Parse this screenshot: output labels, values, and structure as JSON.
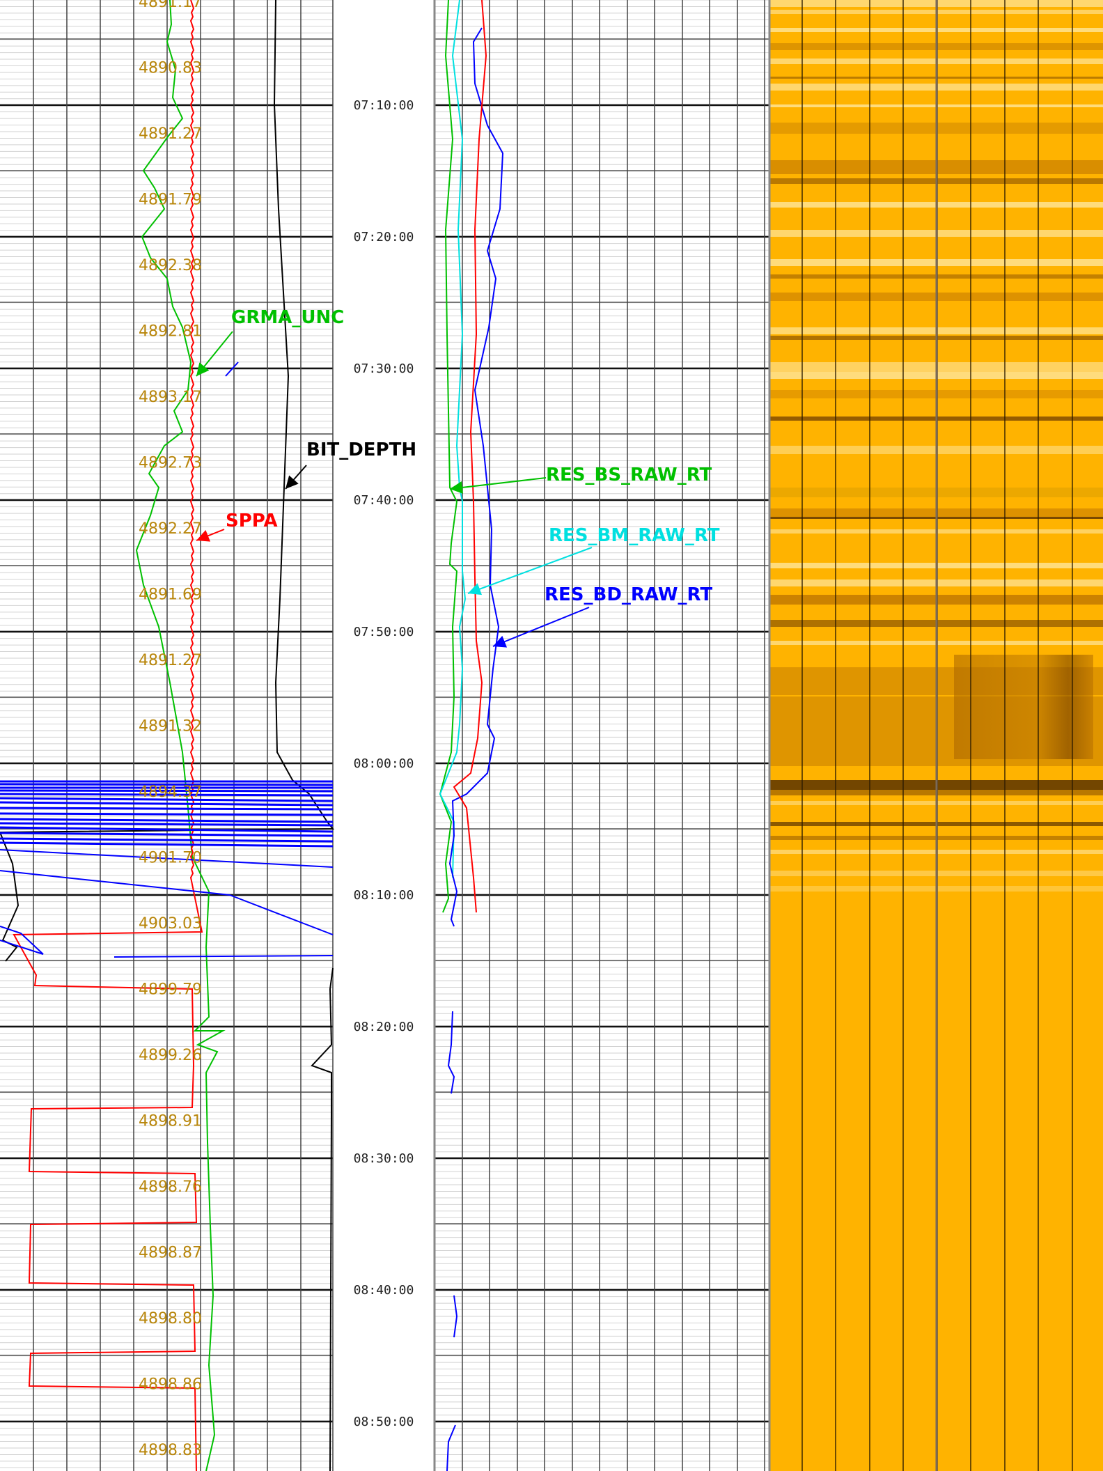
{
  "colors": {
    "depth_label": "#b8860b",
    "sppa": "#ff0000",
    "grma": "#00c000",
    "bit_depth": "#000000",
    "res_bs": "#00c000",
    "res_bm": "#00e0e0",
    "res_bd": "#0000ff",
    "image_base": "#ffb300",
    "image_dark": "#5a3200",
    "image_light": "#ffe08a"
  },
  "chart_data": {
    "type": "line",
    "index_axis": "time",
    "time_ticks": [
      "07:10:00",
      "07:20:00",
      "07:30:00",
      "07:40:00",
      "07:50:00",
      "08:00:00",
      "08:10:00",
      "08:20:00",
      "08:30:00",
      "08:40:00",
      "08:50:00"
    ],
    "depth_labels": [
      "4891.17",
      "4890.83",
      "4891.27",
      "4891.79",
      "4892.38",
      "4892.81",
      "4893.17",
      "4892.73",
      "4892.27",
      "4891.69",
      "4891.27",
      "4891.32",
      "4894.37",
      "4901.70",
      "4903.03",
      "4899.79",
      "4899.26",
      "4898.91",
      "4898.76",
      "4898.87",
      "4898.80",
      "4898.86",
      "4898.83"
    ],
    "curve_labels": {
      "grma": "GRMA_UNC",
      "bit_depth": "BIT_DEPTH",
      "sppa": "SPPA",
      "res_bs": "RES_BS_RAW_RT",
      "res_bm": "RES_BM_RAW_RT",
      "res_bd": "RES_BD_RAW_RT"
    }
  }
}
